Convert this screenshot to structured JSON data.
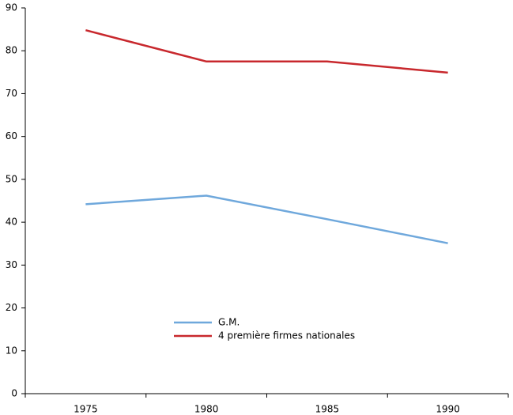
{
  "chart_data": {
    "type": "line",
    "categories": [
      "1975",
      "1980",
      "1985",
      "1990"
    ],
    "series": [
      {
        "name": "G.M.",
        "color": "#6fa8dc",
        "values": [
          44.2,
          46.2,
          40.7,
          35.1
        ]
      },
      {
        "name": "4 première firmes nationales",
        "color": "#c8282d",
        "values": [
          84.8,
          77.5,
          77.5,
          74.9
        ]
      }
    ],
    "ylim": [
      0,
      90
    ],
    "yticks": [
      0,
      10,
      20,
      30,
      40,
      50,
      60,
      70,
      80,
      90
    ],
    "grid": false,
    "legend": "bottom-center"
  }
}
